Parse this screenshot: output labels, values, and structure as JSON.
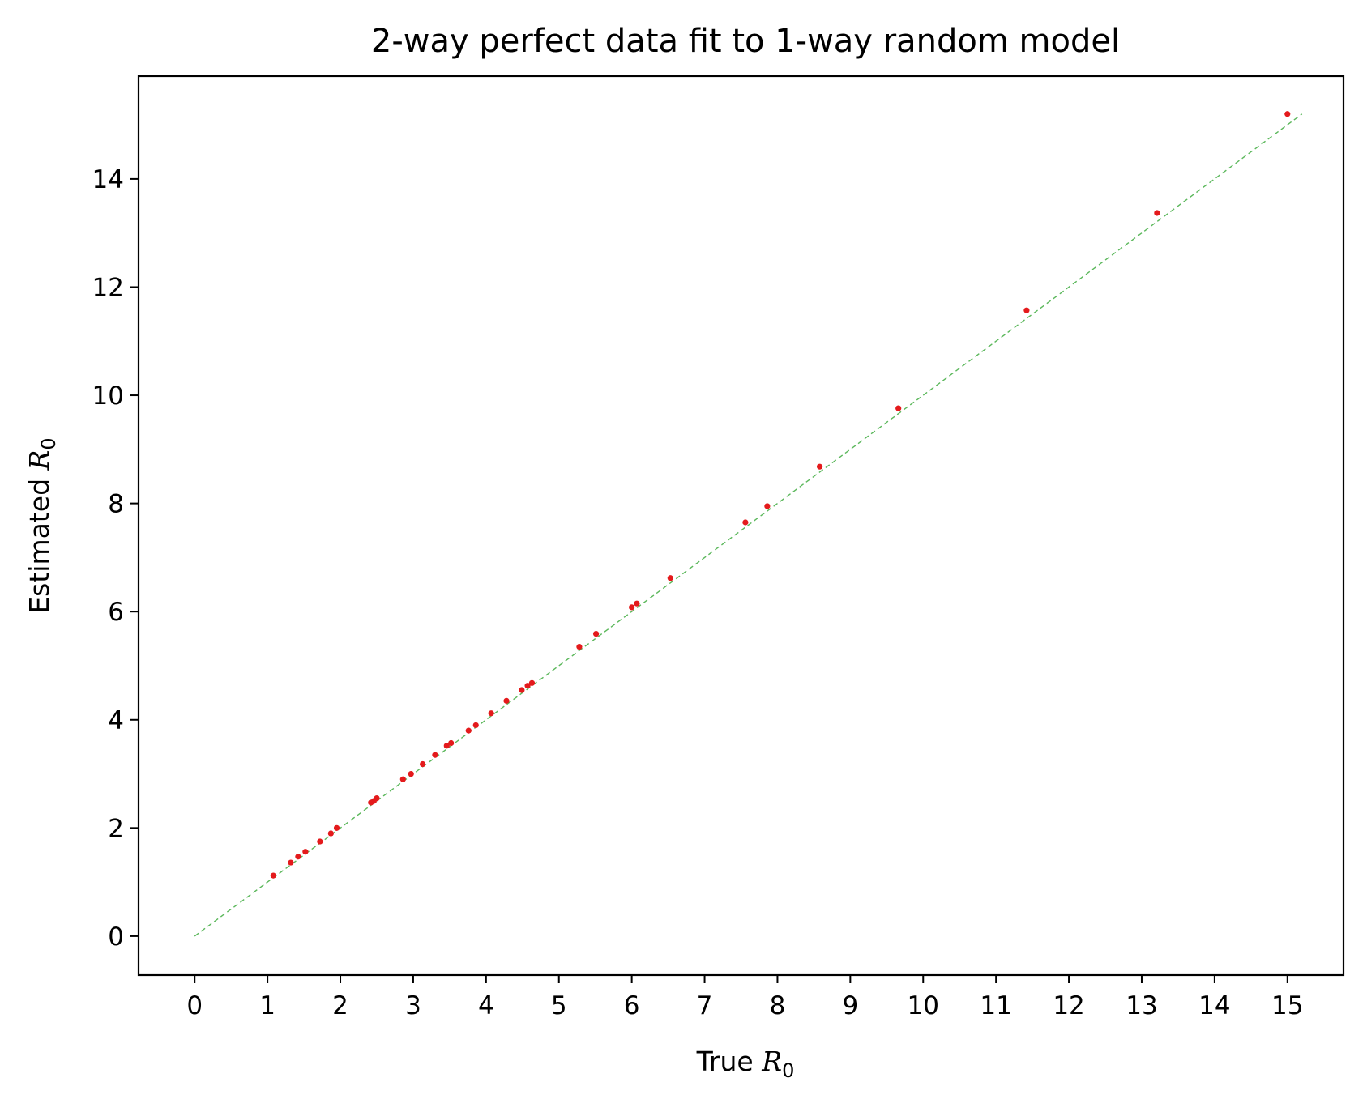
{
  "chart_data": {
    "type": "scatter",
    "title": "2-way perfect data fit to 1-way random model",
    "xlabel": {
      "prefix": "True ",
      "symbol": "R",
      "subscript": "0"
    },
    "ylabel": {
      "prefix": "Estimated ",
      "symbol": "R",
      "subscript": "0"
    },
    "xlim": [
      -0.77,
      15.77
    ],
    "ylim": [
      -0.72,
      15.9
    ],
    "xticks": [
      0,
      1,
      2,
      3,
      4,
      5,
      6,
      7,
      8,
      9,
      10,
      11,
      12,
      13,
      14,
      15
    ],
    "yticks": [
      0,
      2,
      4,
      6,
      8,
      10,
      12,
      14
    ],
    "grid": false,
    "reference_line": {
      "from": [
        0,
        0
      ],
      "to": [
        15.2,
        15.2
      ],
      "color": "#5cb85c",
      "style": "dashed"
    },
    "marker_color": "#e41a1c",
    "points": [
      [
        1.08,
        1.12
      ],
      [
        1.32,
        1.36
      ],
      [
        1.42,
        1.47
      ],
      [
        1.52,
        1.56
      ],
      [
        1.72,
        1.75
      ],
      [
        1.87,
        1.9
      ],
      [
        1.95,
        2.0
      ],
      [
        2.42,
        2.47
      ],
      [
        2.46,
        2.5
      ],
      [
        2.5,
        2.55
      ],
      [
        2.86,
        2.9
      ],
      [
        2.97,
        3.0
      ],
      [
        3.13,
        3.18
      ],
      [
        3.3,
        3.35
      ],
      [
        3.46,
        3.52
      ],
      [
        3.52,
        3.57
      ],
      [
        3.76,
        3.8
      ],
      [
        3.86,
        3.9
      ],
      [
        4.07,
        4.12
      ],
      [
        4.28,
        4.35
      ],
      [
        4.49,
        4.55
      ],
      [
        4.57,
        4.63
      ],
      [
        4.63,
        4.68
      ],
      [
        5.28,
        5.35
      ],
      [
        5.51,
        5.59
      ],
      [
        6.0,
        6.08
      ],
      [
        6.07,
        6.15
      ],
      [
        6.53,
        6.62
      ],
      [
        7.56,
        7.65
      ],
      [
        7.86,
        7.95
      ],
      [
        8.58,
        8.68
      ],
      [
        9.66,
        9.76
      ],
      [
        11.42,
        11.57
      ],
      [
        13.21,
        13.37
      ],
      [
        15.0,
        15.2
      ]
    ]
  }
}
